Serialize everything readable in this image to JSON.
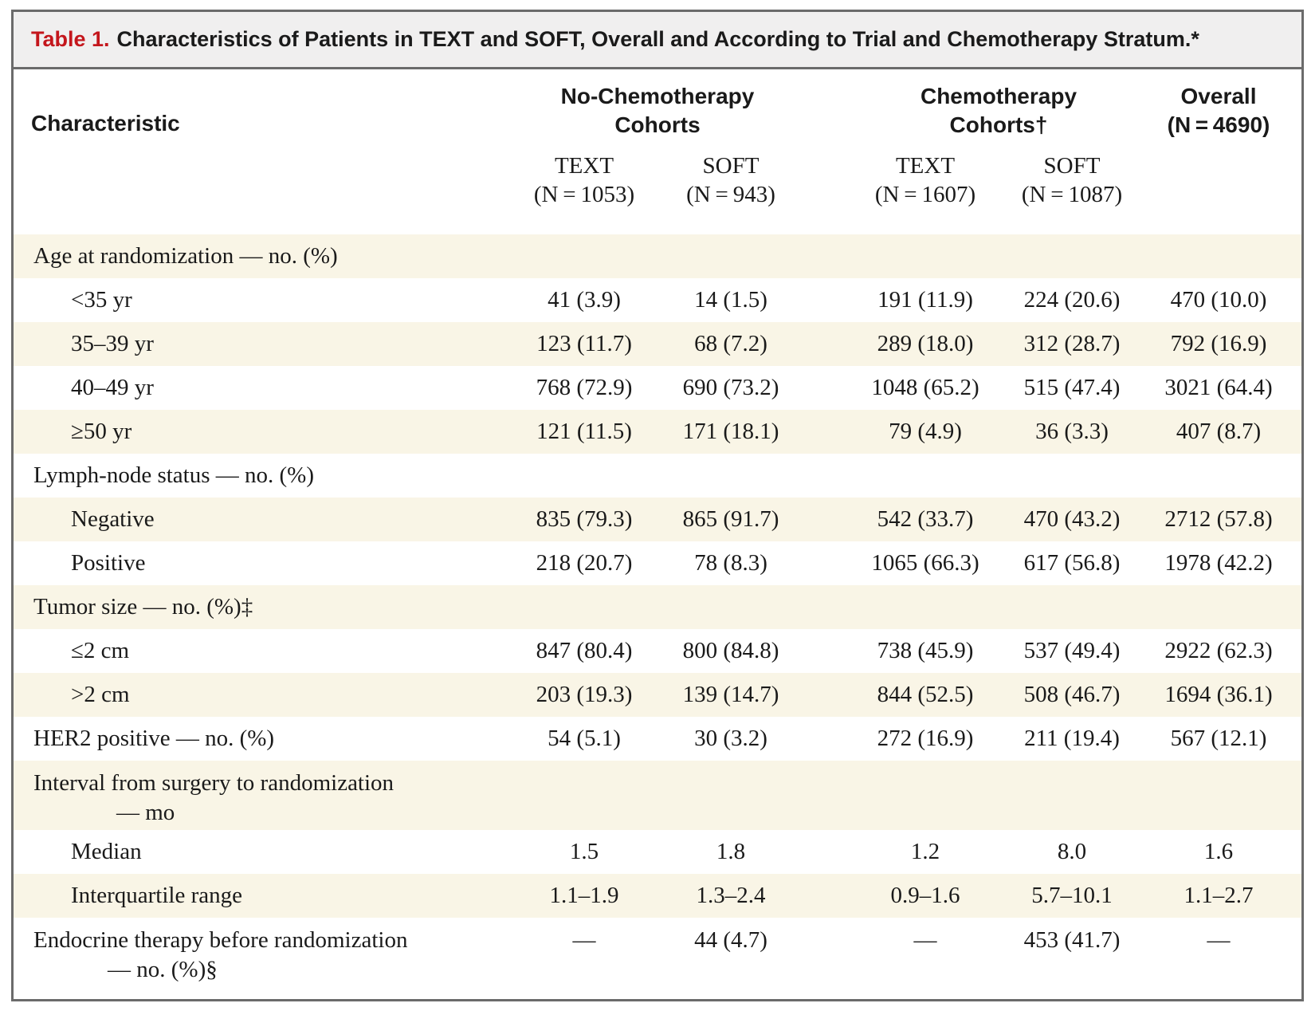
{
  "title": {
    "label": "Table 1.",
    "text": "Characteristics of Patients in TEXT and SOFT, Overall and According to Trial and Chemotherapy Stratum.*"
  },
  "header": {
    "characteristic": "Characteristic",
    "no_chemo_line1": "No-Chemotherapy",
    "no_chemo_line2": "Cohorts",
    "chemo_line1": "Chemotherapy",
    "chemo_line2": "Cohorts†",
    "overall_line1": "Overall",
    "overall_line2": "(N = 4690)",
    "columns": [
      {
        "trial": "TEXT",
        "n": "(N = 1053)"
      },
      {
        "trial": "SOFT",
        "n": "(N = 943)"
      },
      {
        "trial": "TEXT",
        "n": "(N = 1607)"
      },
      {
        "trial": "SOFT",
        "n": "(N = 1087)"
      }
    ]
  },
  "rows": [
    {
      "label": "Age at randomization — no. (%)",
      "values": [
        "",
        "",
        "",
        "",
        ""
      ]
    },
    {
      "label": "<35 yr",
      "values": [
        "41 (3.9)",
        "14 (1.5)",
        "191 (11.9)",
        "224 (20.6)",
        "470 (10.0)"
      ]
    },
    {
      "label": "35–39 yr",
      "values": [
        "123 (11.7)",
        "68 (7.2)",
        "289 (18.0)",
        "312 (28.7)",
        "792 (16.9)"
      ]
    },
    {
      "label": "40–49 yr",
      "values": [
        "768 (72.9)",
        "690 (73.2)",
        "1048 (65.2)",
        "515 (47.4)",
        "3021 (64.4)"
      ]
    },
    {
      "label": "≥50 yr",
      "values": [
        "121 (11.5)",
        "171 (18.1)",
        "79 (4.9)",
        "36 (3.3)",
        "407 (8.7)"
      ]
    },
    {
      "label": "Lymph-node status — no. (%)",
      "values": [
        "",
        "",
        "",
        "",
        ""
      ]
    },
    {
      "label": "Negative",
      "values": [
        "835 (79.3)",
        "865 (91.7)",
        "542 (33.7)",
        "470 (43.2)",
        "2712 (57.8)"
      ]
    },
    {
      "label": "Positive",
      "values": [
        "218 (20.7)",
        "78 (8.3)",
        "1065 (66.3)",
        "617 (56.8)",
        "1978 (42.2)"
      ]
    },
    {
      "label": "Tumor size — no. (%)‡",
      "values": [
        "",
        "",
        "",
        "",
        ""
      ]
    },
    {
      "label": "≤2 cm",
      "values": [
        "847 (80.4)",
        "800 (84.8)",
        "738 (45.9)",
        "537 (49.4)",
        "2922 (62.3)"
      ]
    },
    {
      "label": ">2 cm",
      "values": [
        "203 (19.3)",
        "139 (14.7)",
        "844 (52.5)",
        "508 (46.7)",
        "1694 (36.1)"
      ]
    },
    {
      "label": "HER2 positive — no. (%)",
      "values": [
        "54 (5.1)",
        "30 (3.2)",
        "272 (16.9)",
        "211 (19.4)",
        "567 (12.1)"
      ]
    },
    {
      "label": "Interval from surgery to randomization",
      "label_cont": "— mo",
      "values": [
        "",
        "",
        "",
        "",
        ""
      ]
    },
    {
      "label": "Median",
      "values": [
        "1.5",
        "1.8",
        "1.2",
        "8.0",
        "1.6"
      ]
    },
    {
      "label": "Interquartile range",
      "values": [
        "1.1–1.9",
        "1.3–2.4",
        "0.9–1.6",
        "5.7–10.1",
        "1.1–2.7"
      ]
    },
    {
      "label": "Endocrine therapy before randomization",
      "label_cont": "— no. (%)§",
      "values": [
        "—",
        "44 (4.7)",
        "—",
        "453 (41.7)",
        "—"
      ]
    }
  ]
}
